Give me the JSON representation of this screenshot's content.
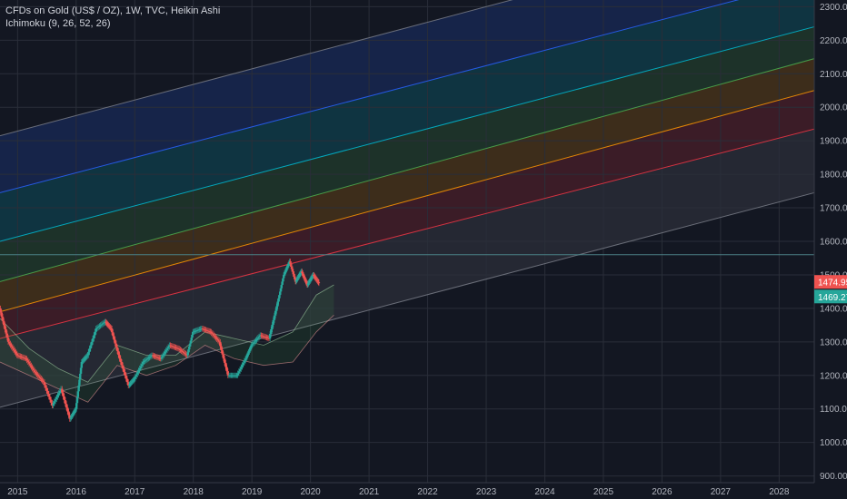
{
  "legend": {
    "symbol": "CFDs on Gold (US$ / OZ), 1W, TVC, Heikin Ashi",
    "indicator": "Ichimoku (9, 26, 52, 26)"
  },
  "price_tags": [
    {
      "label": "1474.95",
      "value": 1474.95,
      "color": "#ef5350"
    },
    {
      "label": "1469.27",
      "value": 1469.27,
      "color": "#26a69a"
    }
  ],
  "chart_data": {
    "type": "line",
    "title": "",
    "xlabel": "",
    "ylabel": "",
    "x_ticks": [
      "2015",
      "2016",
      "2017",
      "2018",
      "2019",
      "2020",
      "2021",
      "2022",
      "2023",
      "2024",
      "2025",
      "2026",
      "2027",
      "2028"
    ],
    "y_ticks": [
      "900.00",
      "1000.00",
      "1100.00",
      "1200.00",
      "1300.00",
      "1400.00",
      "1500.00",
      "1600.00",
      "1700.00",
      "1800.00",
      "1900.00",
      "2000.00",
      "2100.00",
      "2200.00",
      "2300.00"
    ],
    "xlim": [
      2014.7,
      2028.6
    ],
    "ylim": [
      880,
      2320
    ],
    "grid": true,
    "channel_lines": [
      {
        "color": "#787b86",
        "start": [
          2014.7,
          1105
        ],
        "end": [
          2028.6,
          1745
        ]
      },
      {
        "color": "#f23645",
        "start": [
          2014.7,
          1310
        ],
        "end": [
          2028.6,
          1935
        ]
      },
      {
        "color": "#ff9800",
        "start": [
          2014.7,
          1390
        ],
        "end": [
          2028.6,
          2050
        ]
      },
      {
        "color": "#4caf50",
        "start": [
          2014.7,
          1480
        ],
        "end": [
          2028.6,
          2145
        ]
      },
      {
        "color": "#00bcd4",
        "start": [
          2014.7,
          1600
        ],
        "end": [
          2028.6,
          2240
        ]
      },
      {
        "color": "#2962ff",
        "start": [
          2014.7,
          1745
        ],
        "end": [
          2028.6,
          2380
        ]
      },
      {
        "color": "#787b86",
        "start": [
          2014.7,
          1915
        ],
        "end": [
          2028.6,
          2560
        ]
      }
    ],
    "channel_fills": [
      {
        "color": "#f23645",
        "between": [
          1,
          2
        ]
      },
      {
        "color": "#ff9800",
        "between": [
          2,
          3
        ]
      },
      {
        "color": "#4caf50",
        "between": [
          3,
          4
        ]
      },
      {
        "color": "#00bcd4",
        "between": [
          4,
          5
        ]
      },
      {
        "color": "#2962ff",
        "between": [
          5,
          6
        ]
      },
      {
        "color": "#787b86",
        "between": [
          0,
          1
        ]
      }
    ],
    "horizontal_line": {
      "value": 1560,
      "color": "#4a7f84"
    },
    "series": [
      {
        "name": "",
        "color_up": "#26a69a",
        "color_down": "#ef5350",
        "x": [
          2014.7,
          2014.85,
          2015.0,
          2015.15,
          2015.3,
          2015.45,
          2015.6,
          2015.75,
          2015.9,
          2016.0,
          2016.1,
          2016.2,
          2016.35,
          2016.5,
          2016.6,
          2016.75,
          2016.9,
          2017.0,
          2017.15,
          2017.3,
          2017.45,
          2017.6,
          2017.75,
          2017.9,
          2018.0,
          2018.15,
          2018.3,
          2018.45,
          2018.6,
          2018.75,
          2018.9,
          2019.0,
          2019.15,
          2019.3,
          2019.45,
          2019.55,
          2019.65,
          2019.75,
          2019.85,
          2019.95,
          2020.05,
          2020.15
        ],
        "values": [
          1400,
          1300,
          1260,
          1250,
          1210,
          1180,
          1110,
          1160,
          1070,
          1100,
          1240,
          1260,
          1340,
          1360,
          1340,
          1250,
          1170,
          1190,
          1240,
          1260,
          1250,
          1290,
          1280,
          1260,
          1330,
          1340,
          1330,
          1300,
          1200,
          1200,
          1250,
          1290,
          1320,
          1310,
          1420,
          1500,
          1540,
          1480,
          1510,
          1470,
          1500,
          1475
        ]
      }
    ],
    "ichimoku_cloud": {
      "x": [
        2014.7,
        2015.2,
        2015.7,
        2016.2,
        2016.7,
        2017.2,
        2017.7,
        2018.2,
        2018.7,
        2019.2,
        2019.7,
        2020.1,
        2020.4
      ],
      "upper": [
        1370,
        1280,
        1220,
        1180,
        1290,
        1260,
        1260,
        1330,
        1310,
        1290,
        1330,
        1440,
        1470
      ],
      "lower": [
        1240,
        1200,
        1160,
        1120,
        1230,
        1200,
        1230,
        1290,
        1250,
        1230,
        1240,
        1330,
        1380
      ]
    }
  }
}
